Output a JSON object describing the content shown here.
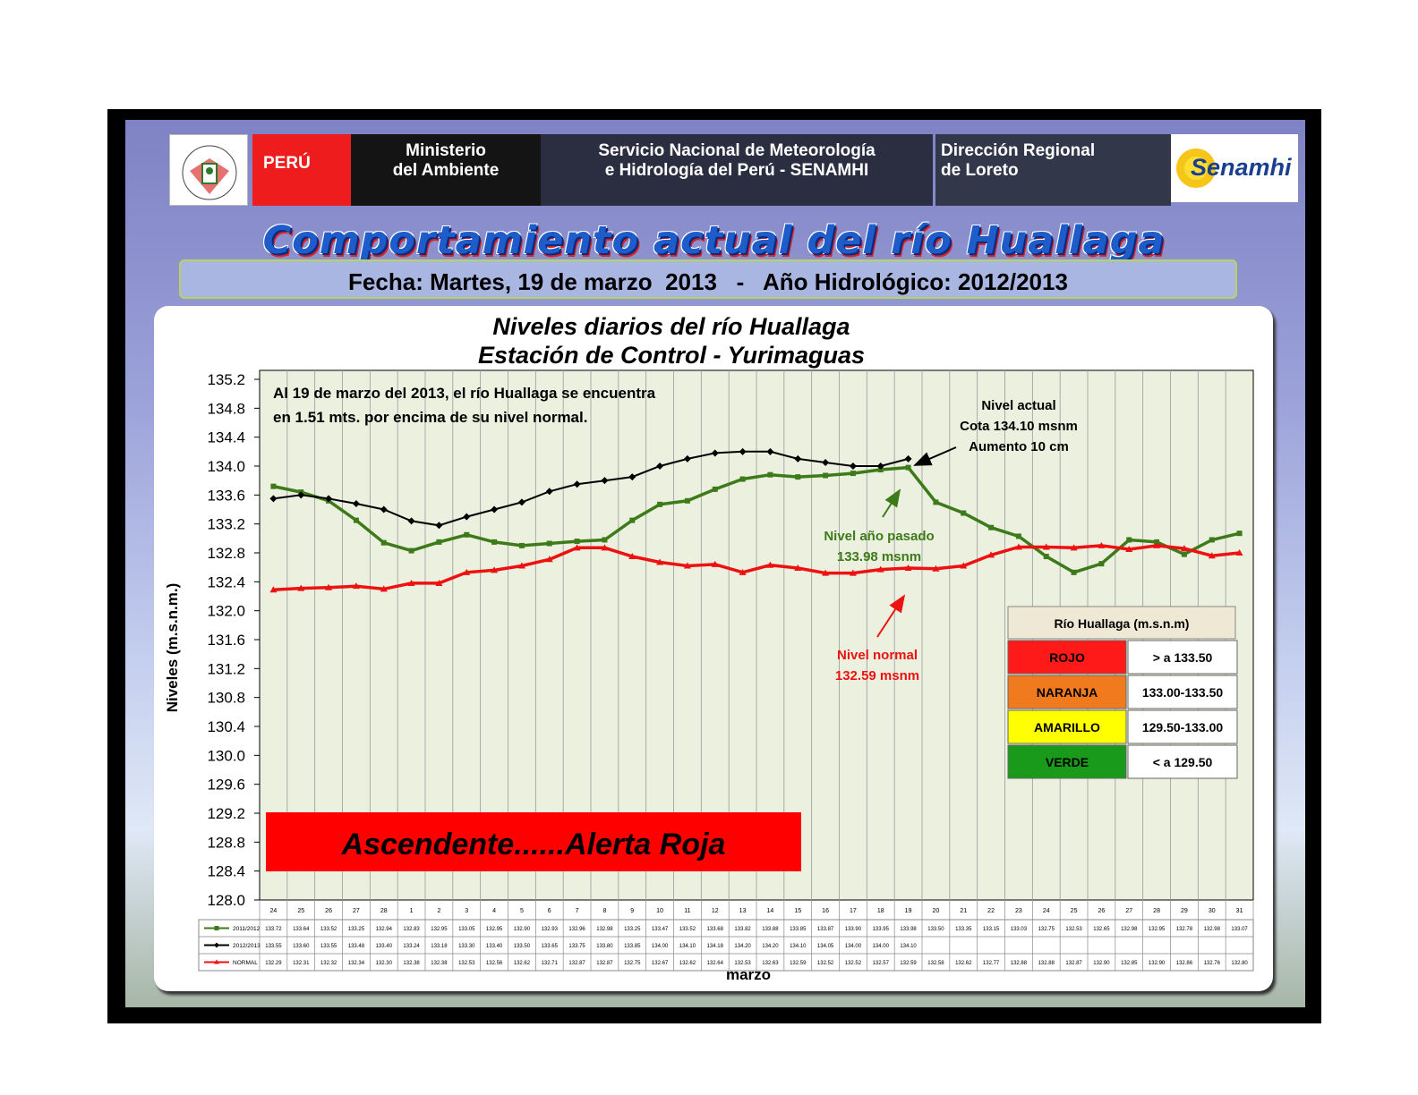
{
  "header": {
    "peru_label": "PERÚ",
    "ministry": [
      "Ministerio",
      "del Ambiente"
    ],
    "senamhi": [
      "Servicio Nacional de Meteorología",
      "e Hidrología del Perú - SENAMHI"
    ],
    "direccion": [
      "Dirección Regional",
      "de Loreto"
    ],
    "senamhi_logo_text": "Senamhi"
  },
  "main_title": "Comportamiento actual del río Huallaga",
  "date_line": "Fecha: Martes, 19 de marzo  2013   -   Año Hidrológico: 2012/2013",
  "chart_data": {
    "type": "line",
    "title": [
      "Niveles diarios del río Huallaga",
      "Estación de Control - Yurimaguas"
    ],
    "ylabel": "Niveles (m.s.n.m.)",
    "xlabel": "marzo",
    "ylim": [
      128.0,
      135.2
    ],
    "yticks": [
      "135.2",
      "134.8",
      "134.4",
      "134.0",
      "133.6",
      "133.2",
      "132.8",
      "132.4",
      "132.0",
      "131.6",
      "131.2",
      "130.8",
      "130.4",
      "130.0",
      "129.6",
      "129.2",
      "128.8",
      "128.4",
      "128.0"
    ],
    "categories": [
      "24",
      "25",
      "26",
      "27",
      "28",
      "1",
      "2",
      "3",
      "4",
      "5",
      "6",
      "7",
      "8",
      "9",
      "10",
      "11",
      "12",
      "13",
      "14",
      "15",
      "16",
      "17",
      "18",
      "19",
      "20",
      "21",
      "22",
      "23",
      "24",
      "25",
      "26",
      "27",
      "28",
      "29",
      "30",
      "31"
    ],
    "grid": true,
    "series": [
      {
        "name": "2011/2012",
        "color": "#3d7a1a",
        "marker": "square",
        "values": [
          133.72,
          133.64,
          133.52,
          133.25,
          132.94,
          132.83,
          132.95,
          133.05,
          132.95,
          132.9,
          132.93,
          132.96,
          132.98,
          133.25,
          133.47,
          133.52,
          133.68,
          133.82,
          133.88,
          133.85,
          133.87,
          133.9,
          133.95,
          133.98,
          133.5,
          133.35,
          133.15,
          133.03,
          132.75,
          132.53,
          132.65,
          132.98,
          132.95,
          132.78,
          132.98,
          133.07
        ]
      },
      {
        "name": "2012/2013",
        "color": "#000000",
        "marker": "diamond",
        "values": [
          133.55,
          133.6,
          133.55,
          133.48,
          133.4,
          133.24,
          133.18,
          133.3,
          133.4,
          133.5,
          133.65,
          133.75,
          133.8,
          133.85,
          134.0,
          134.1,
          134.18,
          134.2,
          134.2,
          134.1,
          134.05,
          134.0,
          134.0,
          134.1,
          null,
          null,
          null,
          null,
          null,
          null,
          null,
          null,
          null,
          null,
          null,
          null
        ]
      },
      {
        "name": "NORMAL",
        "color": "#ee1111",
        "marker": "triangle",
        "values": [
          132.29,
          132.31,
          132.32,
          132.34,
          132.3,
          132.38,
          132.38,
          132.53,
          132.56,
          132.62,
          132.71,
          132.87,
          132.87,
          132.75,
          132.67,
          132.62,
          132.64,
          132.53,
          132.63,
          132.59,
          132.52,
          132.52,
          132.57,
          132.59,
          132.58,
          132.62,
          132.77,
          132.88,
          132.88,
          132.87,
          132.9,
          132.85,
          132.9,
          132.86,
          132.76,
          132.8
        ]
      }
    ],
    "table_values": [
      [
        "133.72",
        "133.64",
        "133.52",
        "133.25",
        "132.94",
        "132.83",
        "132.95",
        "133.05",
        "132.95",
        "132.90",
        "132.93",
        "132.96",
        "132.98",
        "133.25",
        "133.47",
        "133.52",
        "133.68",
        "133.82",
        "133.88",
        "133.85",
        "133.87",
        "133.90",
        "133.95",
        "133.98",
        "133.50",
        "133.35",
        "133.15",
        "133.03",
        "132.75",
        "132.53",
        "132.65",
        "132.98",
        "132.95",
        "132.78",
        "132.98",
        "133.07"
      ],
      [
        "133.55",
        "133.60",
        "133.55",
        "133.48",
        "133.40",
        "133.24",
        "133.18",
        "133.30",
        "133.40",
        "133.50",
        "133.65",
        "133.75",
        "133.80",
        "133.85",
        "134.00",
        "134.10",
        "134.18",
        "134.20",
        "134.20",
        "134.10",
        "134.05",
        "134.00",
        "134.00",
        "134.10",
        "",
        "",
        "",
        "",
        "",
        "",
        "",
        "",
        "",
        "",
        "",
        ""
      ],
      [
        "132.29",
        "132.31",
        "132.32",
        "132.34",
        "132.30",
        "132.38",
        "132.38",
        "132.53",
        "132.56",
        "132.62",
        "132.71",
        "132.87",
        "132.87",
        "132.75",
        "132.67",
        "132.62",
        "132.64",
        "132.53",
        "132.63",
        "132.59",
        "132.52",
        "132.52",
        "132.57",
        "132.59",
        "132.58",
        "132.62",
        "132.77",
        "132.88",
        "132.88",
        "132.87",
        "132.90",
        "132.85",
        "132.90",
        "132.86",
        "132.76",
        "132.80"
      ]
    ],
    "annotations": {
      "summary": [
        "Al  19 de marzo del 2013, el río Huallaga se encuentra",
        "en  1.51 mts. por encima de su nivel normal."
      ],
      "actual": [
        "Nivel actual",
        "Cota 134.10  msnm",
        "Aumento 10 cm"
      ],
      "pasado": [
        "Nivel año pasado",
        "133.98  msnm"
      ],
      "normal": [
        "Nivel normal",
        "132.59 msnm"
      ],
      "alert": "Ascendente......Alerta  Roja"
    },
    "legend": {
      "title": "Río  Huallaga (m.s.n.m)",
      "rows": [
        {
          "label": "ROJO",
          "range": ">  a 133.50",
          "color": "#ff1a1a"
        },
        {
          "label": "NARANJA",
          "range": "133.00-133.50",
          "color": "#f07b1e"
        },
        {
          "label": "AMARILLO",
          "range": "129.50-133.00",
          "color": "#ffff00"
        },
        {
          "label": "VERDE",
          "range": "< a 129.50",
          "color": "#1a9a1a"
        }
      ]
    }
  }
}
